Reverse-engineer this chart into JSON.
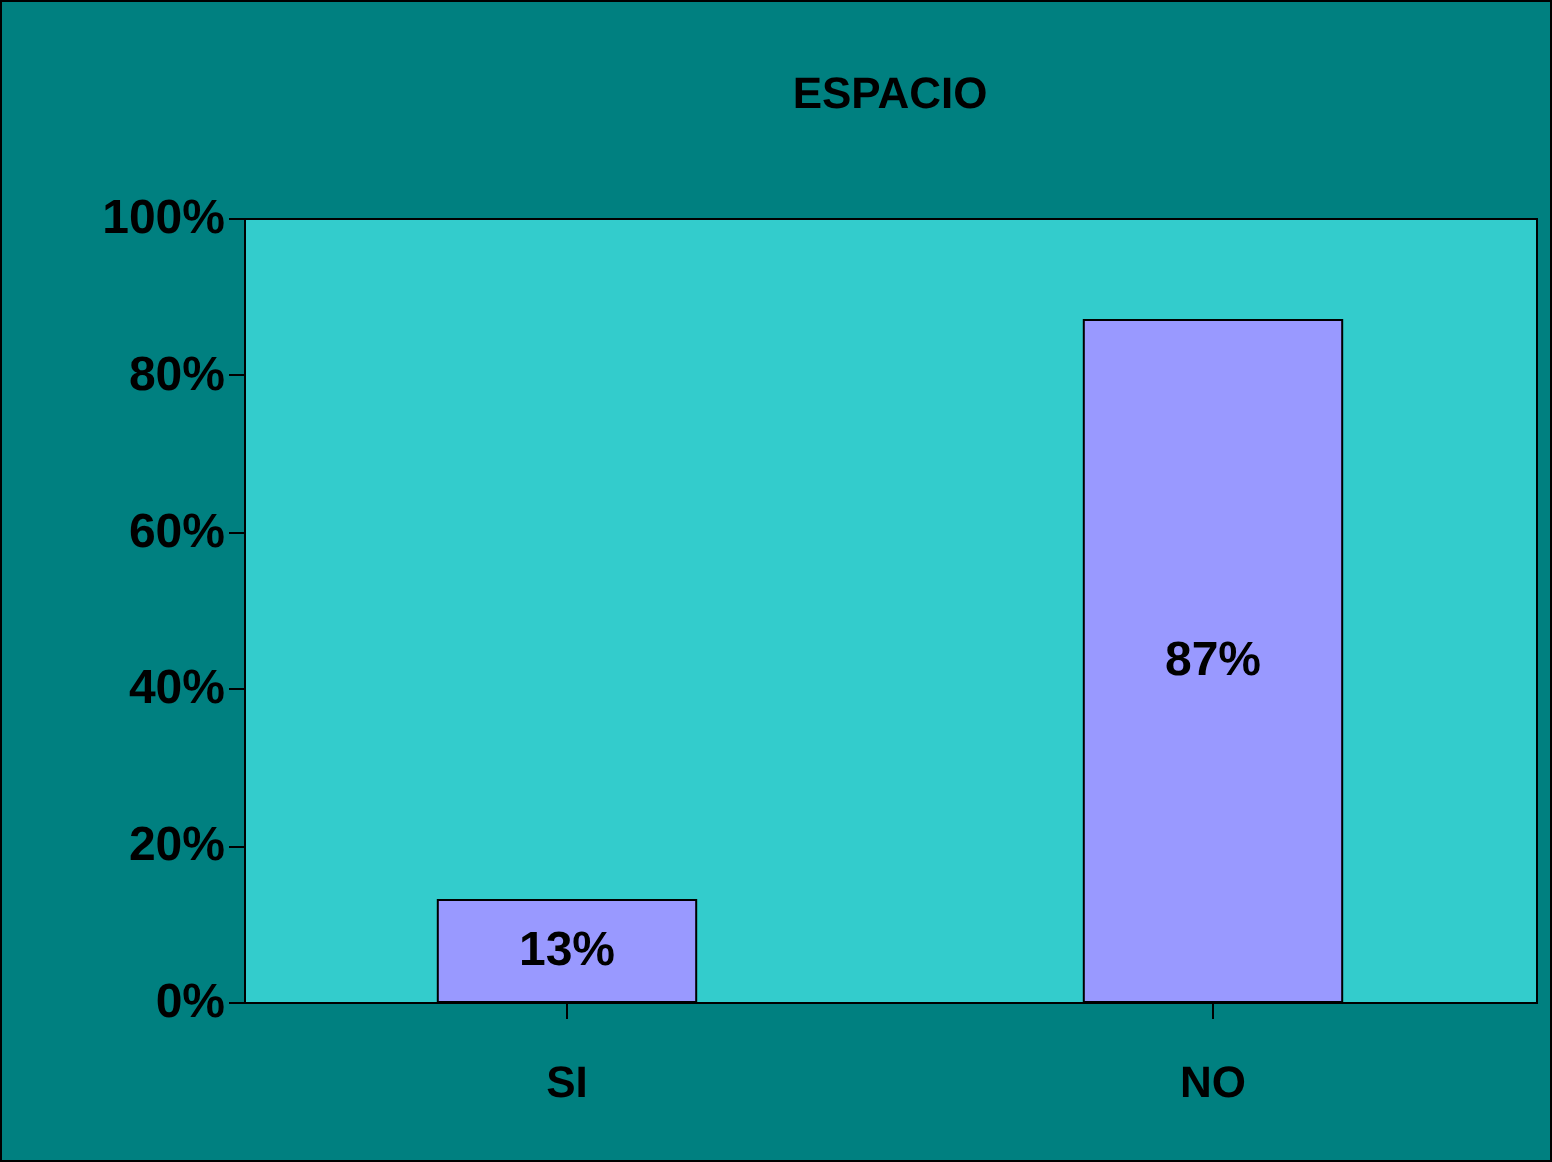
{
  "chart_data": {
    "type": "bar",
    "title": "ESPACIO",
    "categories": [
      "SI",
      "NO"
    ],
    "values": [
      13,
      87
    ],
    "color": "#9999ff",
    "value_labels": [
      "13%",
      "87%"
    ],
    "ylim": [
      0,
      100
    ],
    "yticks": [
      {
        "value": 0,
        "label": "0%"
      },
      {
        "value": 20,
        "label": "20%"
      },
      {
        "value": 40,
        "label": "40%"
      },
      {
        "value": 60,
        "label": "60%"
      },
      {
        "value": 80,
        "label": "80%"
      },
      {
        "value": 100,
        "label": "100%"
      }
    ],
    "grid": false
  }
}
